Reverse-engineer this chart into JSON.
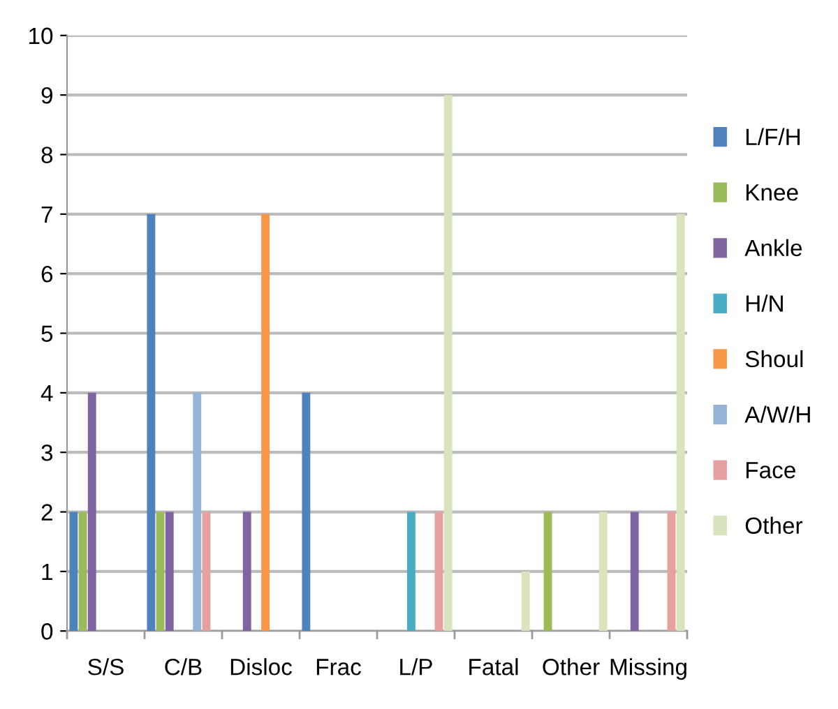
{
  "chart_data": {
    "type": "bar",
    "categories": [
      "S/S",
      "C/B",
      "Disloc",
      "Frac",
      "L/P",
      "Fatal",
      "Other",
      "Missing"
    ],
    "series": [
      {
        "name": "L/F/H",
        "color": "#4f81bd",
        "values": [
          2,
          7,
          null,
          4,
          null,
          null,
          null,
          null
        ]
      },
      {
        "name": "Knee",
        "color": "#9bbb59",
        "values": [
          2,
          2,
          null,
          null,
          null,
          null,
          2,
          null
        ]
      },
      {
        "name": "Ankle",
        "color": "#8064a2",
        "values": [
          4,
          2,
          2,
          null,
          null,
          null,
          null,
          2
        ]
      },
      {
        "name": "H/N",
        "color": "#4bacc6",
        "values": [
          null,
          null,
          null,
          null,
          2,
          null,
          null,
          null
        ]
      },
      {
        "name": "Shoul",
        "color": "#f79646",
        "values": [
          null,
          null,
          7,
          null,
          null,
          null,
          null,
          null
        ]
      },
      {
        "name": "A/W/H",
        "color": "#95b3d7",
        "values": [
          null,
          4,
          null,
          null,
          null,
          null,
          null,
          null
        ]
      },
      {
        "name": "Face",
        "color": "#e6a0a0",
        "values": [
          null,
          2,
          null,
          null,
          2,
          null,
          null,
          2
        ]
      },
      {
        "name": "Other",
        "color": "#d7e4bd",
        "values": [
          null,
          null,
          null,
          null,
          9,
          1,
          2,
          7
        ]
      }
    ],
    "ylim": [
      0,
      10
    ],
    "yticks": [
      0,
      1,
      2,
      3,
      4,
      5,
      6,
      7,
      8,
      9,
      10
    ],
    "grid": "y",
    "legend": "right"
  }
}
